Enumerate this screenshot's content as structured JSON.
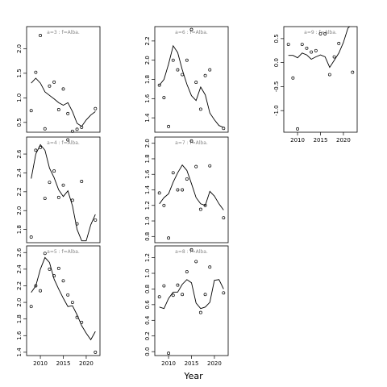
{
  "chart_data": {
    "type": "scatter",
    "xlabel": "Year",
    "ylabel": "",
    "panels": [
      {
        "label": "a=3  :  f=Alba.",
        "ylim": [
          0.3,
          2.45
        ],
        "yticks": [
          0.5,
          1.0,
          1.5,
          2.0
        ],
        "yticklabels": [
          "0.5",
          "1.0",
          "1.5",
          "2.0"
        ],
        "points": {
          "x": [
            2008,
            2009,
            2010,
            2011,
            2012,
            2013,
            2014,
            2015,
            2016,
            2017,
            2018,
            2019,
            2022
          ],
          "y": [
            0.74,
            1.52,
            2.27,
            0.37,
            1.24,
            1.32,
            0.76,
            1.18,
            0.68,
            0.32,
            0.36,
            0.4,
            0.78
          ]
        },
        "line": {
          "x": [
            2008,
            2009,
            2010,
            2011,
            2012,
            2013,
            2014,
            2015,
            2016,
            2017,
            2018,
            2019,
            2020,
            2021,
            2022
          ],
          "y": [
            1.3,
            1.4,
            1.3,
            1.12,
            1.05,
            0.98,
            0.9,
            0.85,
            0.9,
            0.72,
            0.48,
            0.42,
            0.55,
            0.65,
            0.72
          ]
        },
        "show_xticks": false
      },
      {
        "label": "a=6  :  f=Alba.",
        "ylim": [
          1.25,
          2.35
        ],
        "yticks": [
          1.4,
          1.6,
          1.8,
          2.0,
          2.2
        ],
        "yticklabels": [
          "1.4",
          "1.6",
          "1.8",
          "2.0",
          "2.2"
        ],
        "points": {
          "x": [
            2008,
            2009,
            2010,
            2011,
            2012,
            2013,
            2014,
            2015,
            2016,
            2017,
            2018,
            2019,
            2022
          ],
          "y": [
            1.74,
            1.61,
            1.31,
            2.0,
            1.9,
            1.85,
            2.0,
            2.32,
            1.77,
            1.49,
            1.84,
            1.9,
            1.29
          ]
        },
        "line": {
          "x": [
            2008,
            2009,
            2010,
            2011,
            2012,
            2013,
            2014,
            2015,
            2016,
            2017,
            2018,
            2019,
            2020,
            2021,
            2022
          ],
          "y": [
            1.74,
            1.8,
            1.96,
            2.15,
            2.08,
            1.9,
            1.75,
            1.63,
            1.58,
            1.72,
            1.64,
            1.45,
            1.38,
            1.32,
            1.3
          ]
        },
        "show_xticks": false
      },
      {
        "label": "a=9  :  f=Alba.",
        "ylim": [
          -1.45,
          0.75
        ],
        "yticks": [
          -1.0,
          -0.5,
          0.0,
          0.5
        ],
        "yticklabels": [
          "-1.0",
          "-0.5",
          "0.0",
          "0.5"
        ],
        "points": {
          "x": [
            2008,
            2009,
            2010,
            2011,
            2012,
            2013,
            2014,
            2015,
            2016,
            2017,
            2018,
            2019,
            2022
          ],
          "y": [
            0.38,
            -0.32,
            -1.38,
            0.38,
            0.3,
            0.22,
            0.25,
            0.6,
            0.6,
            -0.25,
            0.12,
            0.4,
            -0.2
          ]
        },
        "line": {
          "x": [
            2008,
            2009,
            2010,
            2011,
            2012,
            2013,
            2014,
            2015,
            2016,
            2017,
            2018,
            2019,
            2020,
            2021,
            2022
          ],
          "y": [
            0.15,
            0.15,
            0.1,
            0.2,
            0.16,
            0.07,
            0.12,
            0.16,
            0.12,
            -0.1,
            0.05,
            0.2,
            0.42,
            0.72,
            0.8
          ]
        },
        "show_xticks": true
      },
      {
        "label": "a=4  :  f=Alba.",
        "ylim": [
          1.66,
          2.78
        ],
        "yticks": [
          1.8,
          2.0,
          2.2,
          2.4,
          2.6
        ],
        "yticklabels": [
          "1.8",
          "2.0",
          "2.2",
          "2.4",
          "2.6"
        ],
        "points": {
          "x": [
            2008,
            2009,
            2010,
            2011,
            2012,
            2013,
            2014,
            2015,
            2016,
            2017,
            2018,
            2019,
            2022
          ],
          "y": [
            1.72,
            2.64,
            2.67,
            2.13,
            2.3,
            2.42,
            2.14,
            2.27,
            2.75,
            2.11,
            1.86,
            2.31,
            1.9
          ]
        },
        "line": {
          "x": [
            2008,
            2009,
            2010,
            2011,
            2012,
            2013,
            2014,
            2015,
            2016,
            2017,
            2018,
            2019,
            2020,
            2021,
            2022
          ],
          "y": [
            2.34,
            2.6,
            2.7,
            2.64,
            2.45,
            2.35,
            2.22,
            2.15,
            2.21,
            2.05,
            1.8,
            1.68,
            1.68,
            1.85,
            1.96
          ]
        },
        "show_xticks": false
      },
      {
        "label": "a=7  :  f=Alba.",
        "ylim": [
          0.72,
          2.08
        ],
        "yticks": [
          0.8,
          1.0,
          1.2,
          1.4,
          1.6,
          1.8,
          2.0
        ],
        "yticklabels": [
          "0.8",
          "1.0",
          "1.2",
          "1.4",
          "1.6",
          "1.8",
          "2.0"
        ],
        "points": {
          "x": [
            2008,
            2009,
            2010,
            2011,
            2012,
            2013,
            2014,
            2015,
            2016,
            2017,
            2018,
            2019,
            2022
          ],
          "y": [
            1.36,
            1.2,
            0.78,
            1.62,
            1.4,
            1.4,
            1.54,
            2.03,
            1.7,
            1.15,
            1.2,
            1.71,
            1.04
          ]
        },
        "line": {
          "x": [
            2008,
            2009,
            2010,
            2011,
            2012,
            2013,
            2014,
            2015,
            2016,
            2017,
            2018,
            2019,
            2020,
            2021,
            2022
          ],
          "y": [
            1.22,
            1.3,
            1.35,
            1.5,
            1.62,
            1.72,
            1.65,
            1.48,
            1.3,
            1.22,
            1.2,
            1.38,
            1.32,
            1.22,
            1.14
          ]
        },
        "show_xticks": false
      },
      {
        "label": "a=5  :  f=Alba.",
        "ylim": [
          1.36,
          2.68
        ],
        "yticks": [
          1.4,
          1.6,
          1.8,
          2.0,
          2.2,
          2.4,
          2.6
        ],
        "yticklabels": [
          "1.4",
          "1.6",
          "1.8",
          "2.0",
          "2.2",
          "2.4",
          "2.6"
        ],
        "points": {
          "x": [
            2008,
            2009,
            2010,
            2011,
            2012,
            2013,
            2014,
            2015,
            2016,
            2017,
            2018,
            2019,
            2022
          ],
          "y": [
            1.95,
            2.2,
            2.14,
            2.59,
            2.4,
            2.32,
            2.41,
            2.26,
            2.09,
            2.0,
            1.82,
            1.76,
            1.4
          ]
        },
        "line": {
          "x": [
            2008,
            2009,
            2010,
            2011,
            2012,
            2013,
            2014,
            2015,
            2016,
            2017,
            2018,
            2019,
            2020,
            2021,
            2022
          ],
          "y": [
            2.12,
            2.2,
            2.4,
            2.54,
            2.48,
            2.28,
            2.16,
            2.05,
            1.95,
            1.96,
            1.85,
            1.72,
            1.63,
            1.55,
            1.65
          ]
        },
        "show_xticks": true
      },
      {
        "label": "a=8  :  f=Alba.",
        "ylim": [
          -0.05,
          1.35
        ],
        "yticks": [
          0.0,
          0.2,
          0.4,
          0.6,
          0.8,
          1.0,
          1.2
        ],
        "yticklabels": [
          "0.0",
          "0.2",
          "0.4",
          "0.6",
          "0.8",
          "1.0",
          "1.2"
        ],
        "points": {
          "x": [
            2008,
            2009,
            2010,
            2011,
            2012,
            2013,
            2014,
            2015,
            2016,
            2017,
            2018,
            2019,
            2022
          ],
          "y": [
            0.7,
            0.84,
            -0.02,
            0.72,
            0.85,
            0.73,
            1.02,
            1.3,
            1.15,
            0.5,
            0.73,
            1.08,
            0.75
          ]
        },
        "line": {
          "x": [
            2008,
            2009,
            2010,
            2011,
            2012,
            2013,
            2014,
            2015,
            2016,
            2017,
            2018,
            2019,
            2020,
            2021,
            2022
          ],
          "y": [
            0.57,
            0.55,
            0.68,
            0.76,
            0.76,
            0.86,
            0.92,
            0.88,
            0.62,
            0.55,
            0.57,
            0.63,
            0.91,
            0.92,
            0.8
          ]
        },
        "show_xticks": true
      }
    ],
    "xlim": [
      2007,
      2023
    ],
    "xticks": [
      2010,
      2015,
      2020
    ],
    "xticklabels": [
      "2010",
      "2015",
      "2020"
    ]
  }
}
